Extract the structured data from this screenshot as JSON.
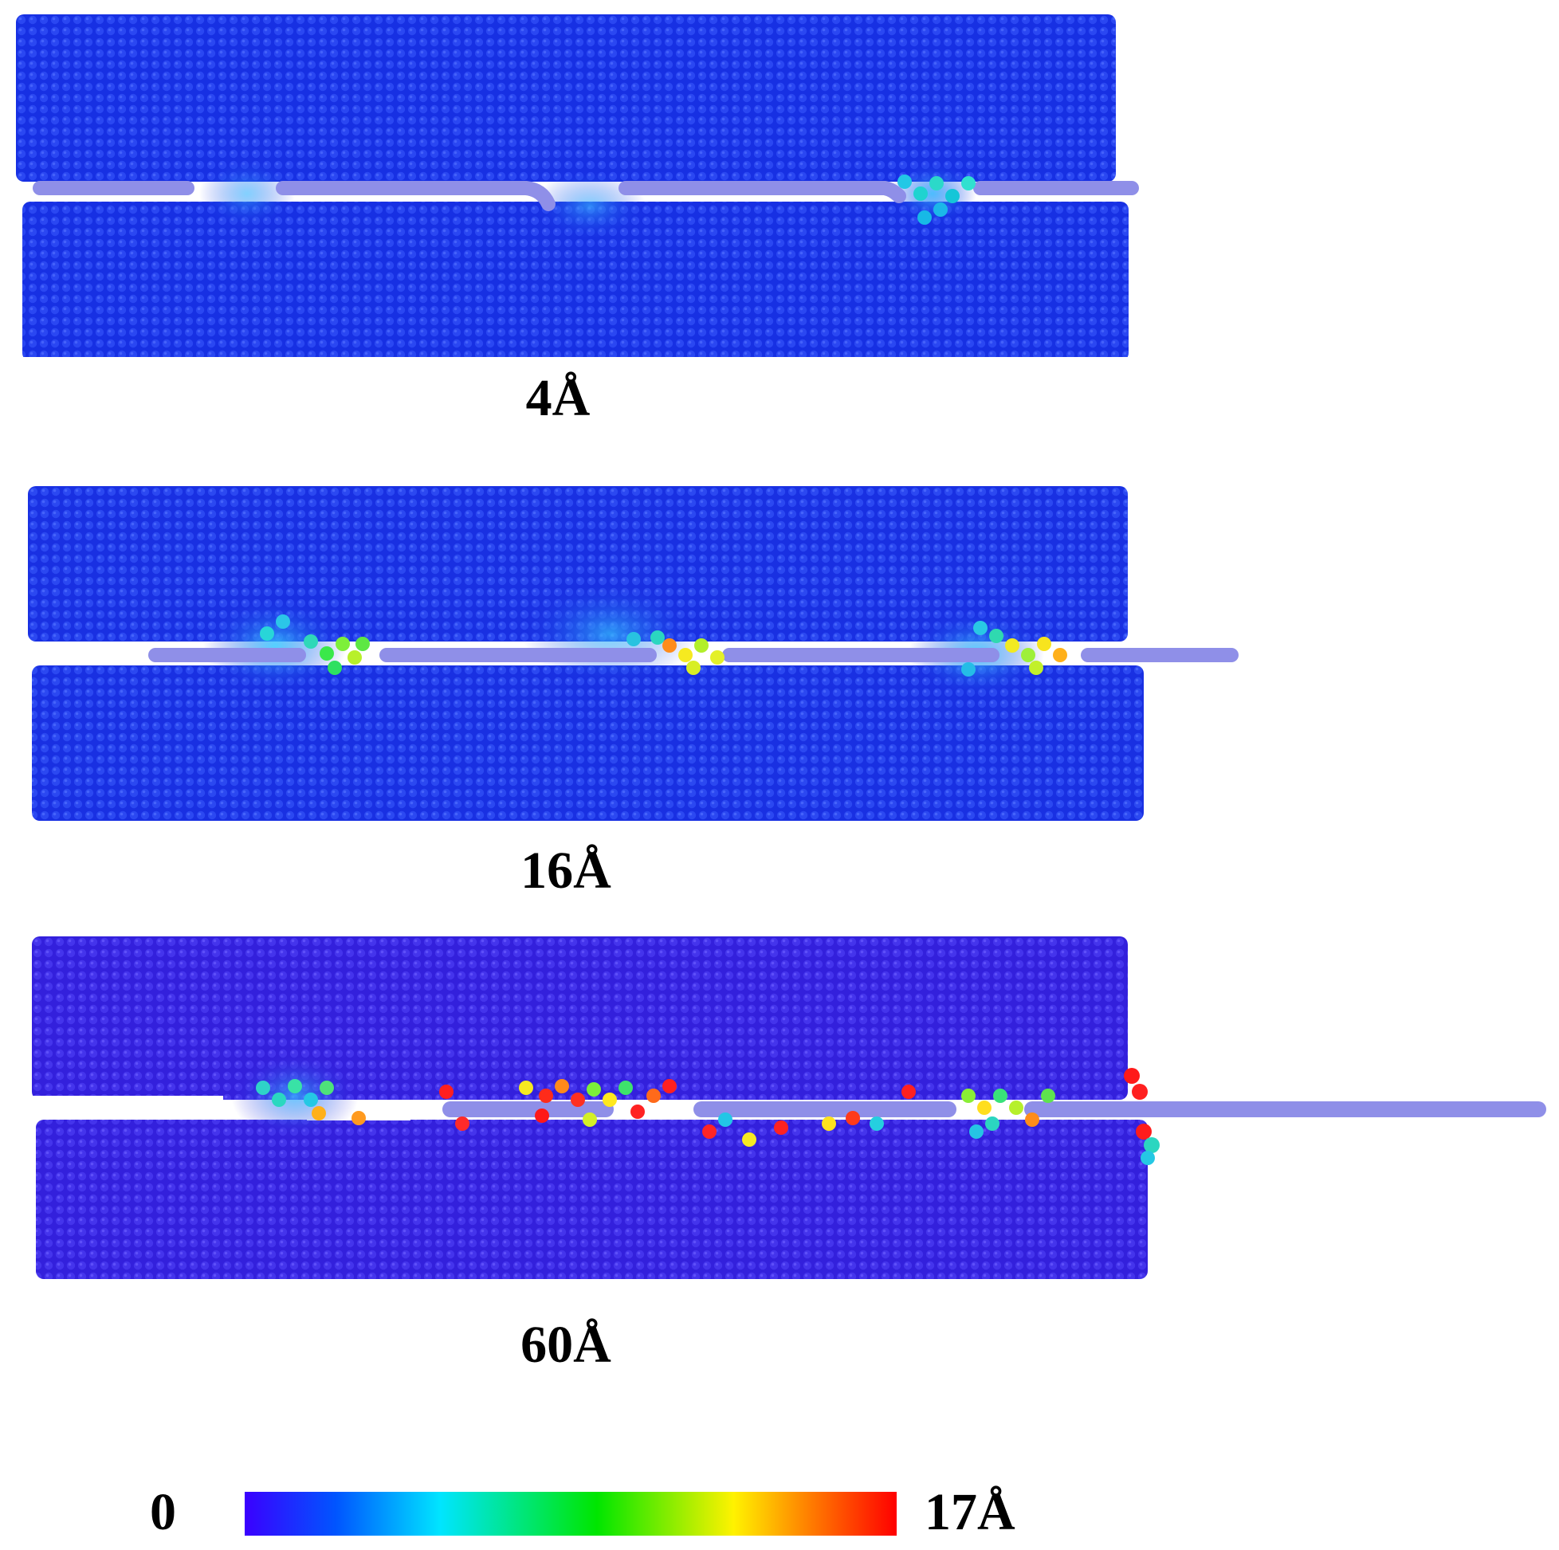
{
  "panels": [
    {
      "label": "4Å"
    },
    {
      "label": "16Å"
    },
    {
      "label": "60Å"
    }
  ],
  "colorbar": {
    "min_label": "0",
    "max_label": "17Å",
    "stops": [
      "#3a00ff",
      "#0055ff",
      "#00e5ff",
      "#00e600",
      "#fff200",
      "#ff7a00",
      "#ff0000"
    ]
  },
  "colors": {
    "slab_deep_blue": "#1a2ee6",
    "slab_violet_blue": "#3a20e0",
    "rod_lavender": "#8f8fe8"
  }
}
